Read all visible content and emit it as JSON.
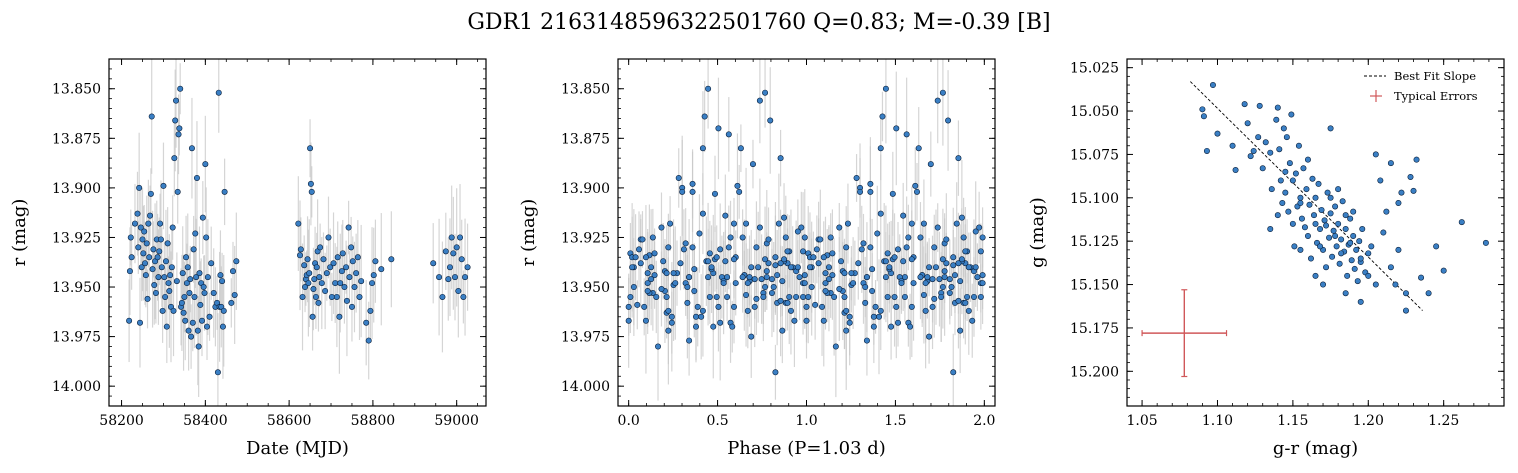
{
  "title": "GDR1 2163148596322501760  Q=0.83; M=-0.39 [B]",
  "colors": {
    "point": "#3a7fc4",
    "point_edge": "#0a1f3a",
    "errbar": "#c8c8c8",
    "typical_err": "#d0585a"
  },
  "chart_data": [
    {
      "type": "scatter",
      "xlabel": "Date (MJD)",
      "ylabel": "r (mag)",
      "xlim": [
        58170,
        59070
      ],
      "ylim": [
        14.01,
        13.835
      ],
      "y_inverted": true,
      "xticks": [
        "58200",
        "58400",
        "58600",
        "58800",
        "59000"
      ],
      "yticks": [
        "13.825",
        "13.850",
        "13.875",
        "13.900",
        "13.925",
        "13.950",
        "13.975",
        "14.000"
      ],
      "typical_err_r": 0.02,
      "points": [
        [
          58218,
          13.967
        ],
        [
          58220,
          13.942
        ],
        [
          58222,
          13.925
        ],
        [
          58224,
          13.935
        ],
        [
          58232,
          13.918
        ],
        [
          58238,
          13.913
        ],
        [
          58240,
          13.93
        ],
        [
          58242,
          13.9
        ],
        [
          58244,
          13.968
        ],
        [
          58246,
          13.92
        ],
        [
          58248,
          13.94
        ],
        [
          58250,
          13.926
        ],
        [
          58252,
          13.933
        ],
        [
          58254,
          13.922
        ],
        [
          58256,
          13.938
        ],
        [
          58258,
          13.944
        ],
        [
          58260,
          13.928
        ],
        [
          58262,
          13.956
        ],
        [
          58264,
          13.918
        ],
        [
          58266,
          13.935
        ],
        [
          58268,
          13.914
        ],
        [
          58270,
          13.903
        ],
        [
          58272,
          13.864
        ],
        [
          58274,
          13.941
        ],
        [
          58276,
          13.931
        ],
        [
          58278,
          13.949
        ],
        [
          58280,
          13.937
        ],
        [
          58282,
          13.953
        ],
        [
          58284,
          13.926
        ],
        [
          58286,
          13.935
        ],
        [
          58288,
          13.945
        ],
        [
          58290,
          13.932
        ],
        [
          58292,
          13.918
        ],
        [
          58294,
          13.926
        ],
        [
          58296,
          13.94
        ],
        [
          58298,
          13.962
        ],
        [
          58300,
          13.899
        ],
        [
          58302,
          13.945
        ],
        [
          58304,
          13.955
        ],
        [
          58306,
          13.937
        ],
        [
          58308,
          13.97
        ],
        [
          58310,
          13.928
        ],
        [
          58312,
          13.948
        ],
        [
          58314,
          13.952
        ],
        [
          58316,
          13.944
        ],
        [
          58318,
          13.96
        ],
        [
          58320,
          13.94
        ],
        [
          58322,
          13.92
        ],
        [
          58324,
          13.962
        ],
        [
          58326,
          13.885
        ],
        [
          58328,
          13.866
        ],
        [
          58330,
          13.856
        ],
        [
          58332,
          13.947
        ],
        [
          58334,
          13.902
        ],
        [
          58336,
          13.873
        ],
        [
          58338,
          13.87
        ],
        [
          58340,
          13.85
        ],
        [
          58342,
          13.96
        ],
        [
          58344,
          13.958
        ],
        [
          58346,
          13.943
        ],
        [
          58348,
          13.963
        ],
        [
          58350,
          13.955
        ],
        [
          58352,
          13.967
        ],
        [
          58354,
          13.935
        ],
        [
          58356,
          13.948
        ],
        [
          58358,
          13.94
        ],
        [
          58360,
          13.972
        ],
        [
          58362,
          13.953
        ],
        [
          58364,
          13.946
        ],
        [
          58366,
          13.975
        ],
        [
          58368,
          13.88
        ],
        [
          58370,
          13.968
        ],
        [
          58372,
          13.931
        ],
        [
          58374,
          13.955
        ],
        [
          58376,
          13.923
        ],
        [
          58378,
          13.945
        ],
        [
          58380,
          13.895
        ],
        [
          58382,
          13.972
        ],
        [
          58384,
          13.98
        ],
        [
          58386,
          13.943
        ],
        [
          58388,
          13.959
        ],
        [
          58390,
          13.948
        ],
        [
          58392,
          13.967
        ],
        [
          58394,
          13.915
        ],
        [
          58396,
          13.95
        ],
        [
          58398,
          13.953
        ],
        [
          58400,
          13.888
        ],
        [
          58402,
          13.925
        ],
        [
          58404,
          13.97
        ],
        [
          58406,
          13.945
        ],
        [
          58410,
          13.965
        ],
        [
          58414,
          13.938
        ],
        [
          58420,
          13.953
        ],
        [
          58424,
          13.96
        ],
        [
          58428,
          13.958
        ],
        [
          58430,
          13.993
        ],
        [
          58432,
          13.852
        ],
        [
          58434,
          13.96
        ],
        [
          58436,
          13.944
        ],
        [
          58438,
          13.96
        ],
        [
          58440,
          13.947
        ],
        [
          58442,
          13.97
        ],
        [
          58444,
          13.962
        ],
        [
          58446,
          13.902
        ],
        [
          58462,
          13.958
        ],
        [
          58466,
          13.942
        ],
        [
          58470,
          13.954
        ],
        [
          58474,
          13.937
        ],
        [
          58622,
          13.918
        ],
        [
          58626,
          13.934
        ],
        [
          58628,
          13.931
        ],
        [
          58632,
          13.955
        ],
        [
          58636,
          13.939
        ],
        [
          58638,
          13.95
        ],
        [
          58640,
          13.946
        ],
        [
          58642,
          13.944
        ],
        [
          58644,
          13.936
        ],
        [
          58646,
          13.948
        ],
        [
          58648,
          13.943
        ],
        [
          58650,
          13.88
        ],
        [
          58652,
          13.898
        ],
        [
          58654,
          13.902
        ],
        [
          58656,
          13.965
        ],
        [
          58658,
          13.951
        ],
        [
          58660,
          13.946
        ],
        [
          58662,
          13.938
        ],
        [
          58664,
          13.955
        ],
        [
          58666,
          13.94
        ],
        [
          58668,
          13.932
        ],
        [
          58670,
          13.958
        ],
        [
          58672,
          13.945
        ],
        [
          58674,
          13.93
        ],
        [
          58678,
          13.948
        ],
        [
          58682,
          13.936
        ],
        [
          58686,
          13.952
        ],
        [
          58690,
          13.943
        ],
        [
          58694,
          13.925
        ],
        [
          58698,
          13.94
        ],
        [
          58702,
          13.955
        ],
        [
          58706,
          13.938
        ],
        [
          58710,
          13.948
        ],
        [
          58714,
          13.955
        ],
        [
          58716,
          13.935
        ],
        [
          58720,
          13.965
        ],
        [
          58722,
          13.948
        ],
        [
          58726,
          13.942
        ],
        [
          58728,
          13.933
        ],
        [
          58732,
          13.95
        ],
        [
          58736,
          13.94
        ],
        [
          58738,
          13.957
        ],
        [
          58742,
          13.92
        ],
        [
          58744,
          13.945
        ],
        [
          58748,
          13.93
        ],
        [
          58750,
          13.96
        ],
        [
          58752,
          13.937
        ],
        [
          58756,
          13.95
        ],
        [
          58760,
          13.943
        ],
        [
          58764,
          13.935
        ],
        [
          58768,
          13.955
        ],
        [
          58772,
          13.947
        ],
        [
          58784,
          13.968
        ],
        [
          58790,
          13.977
        ],
        [
          58794,
          13.962
        ],
        [
          58798,
          13.948
        ],
        [
          58802,
          13.944
        ],
        [
          58806,
          13.937
        ],
        [
          58820,
          13.941
        ],
        [
          58844,
          13.936
        ],
        [
          58944,
          13.938
        ],
        [
          58958,
          13.945
        ],
        [
          58966,
          13.955
        ],
        [
          58974,
          13.932
        ],
        [
          58980,
          13.946
        ],
        [
          58984,
          13.94
        ],
        [
          58988,
          13.925
        ],
        [
          58992,
          13.933
        ],
        [
          58996,
          13.945
        ],
        [
          59000,
          13.93
        ],
        [
          59004,
          13.952
        ],
        [
          59008,
          13.925
        ],
        [
          59012,
          13.936
        ],
        [
          59016,
          13.955
        ],
        [
          59020,
          13.945
        ],
        [
          59026,
          13.94
        ]
      ]
    },
    {
      "type": "scatter",
      "xlabel": "Phase (P=1.03 d)",
      "ylabel": "r (mag)",
      "xlim": [
        -0.06,
        2.06
      ],
      "ylim": [
        14.01,
        13.835
      ],
      "y_inverted": true,
      "xticks": [
        "0.0",
        "0.5",
        "1.0",
        "1.5",
        "2.0"
      ],
      "yticks": [
        "13.825",
        "13.850",
        "13.875",
        "13.900",
        "13.925",
        "13.950",
        "13.975",
        "14.000"
      ],
      "points": []
    },
    {
      "type": "scatter",
      "xlabel": "g-r (mag)",
      "ylabel": "g (mag)",
      "xlim": [
        1.04,
        1.29
      ],
      "ylim": [
        15.22,
        15.02
      ],
      "y_inverted": true,
      "xticks": [
        "1.05",
        "1.10",
        "1.15",
        "1.20",
        "1.25"
      ],
      "yticks": [
        "15.025",
        "15.050",
        "15.075",
        "15.100",
        "15.125",
        "15.150",
        "15.175",
        "15.200"
      ],
      "legend": [
        "Best Fit Slope",
        "Typical Errors"
      ],
      "legend_position": "top-right",
      "fit_line": {
        "x": [
          1.082,
          1.236
        ],
        "y": [
          15.033,
          15.165
        ]
      },
      "typical_error": {
        "x": 1.078,
        "y": 15.178,
        "xerr": 0.028,
        "yerr": 0.025
      },
      "points": [
        [
          1.09,
          15.049
        ],
        [
          1.091,
          15.053
        ],
        [
          1.097,
          15.035
        ],
        [
          1.093,
          15.073
        ],
        [
          1.1,
          15.063
        ],
        [
          1.11,
          15.07
        ],
        [
          1.112,
          15.084
        ],
        [
          1.118,
          15.046
        ],
        [
          1.12,
          15.057
        ],
        [
          1.122,
          15.076
        ],
        [
          1.124,
          15.073
        ],
        [
          1.127,
          15.065
        ],
        [
          1.128,
          15.047
        ],
        [
          1.13,
          15.083
        ],
        [
          1.132,
          15.068
        ],
        [
          1.135,
          15.074
        ],
        [
          1.136,
          15.095
        ],
        [
          1.139,
          15.055
        ],
        [
          1.14,
          15.048
        ],
        [
          1.141,
          15.072
        ],
        [
          1.142,
          15.09
        ],
        [
          1.143,
          15.103
        ],
        [
          1.144,
          15.06
        ],
        [
          1.145,
          15.097
        ],
        [
          1.146,
          15.065
        ],
        [
          1.147,
          15.108
        ],
        [
          1.148,
          15.08
        ],
        [
          1.149,
          15.052
        ],
        [
          1.15,
          15.115
        ],
        [
          1.151,
          15.128
        ],
        [
          1.152,
          15.086
        ],
        [
          1.153,
          15.105
        ],
        [
          1.154,
          15.07
        ],
        [
          1.155,
          15.1
        ],
        [
          1.156,
          15.112
        ],
        [
          1.157,
          15.083
        ],
        [
          1.158,
          15.117
        ],
        [
          1.159,
          15.095
        ],
        [
          1.16,
          15.122
        ],
        [
          1.161,
          15.104
        ],
        [
          1.162,
          15.135
        ],
        [
          1.163,
          15.089
        ],
        [
          1.164,
          15.11
        ],
        [
          1.165,
          15.1
        ],
        [
          1.166,
          15.126
        ],
        [
          1.167,
          15.092
        ],
        [
          1.168,
          15.118
        ],
        [
          1.169,
          15.107
        ],
        [
          1.17,
          15.13
        ],
        [
          1.171,
          15.113
        ],
        [
          1.172,
          15.14
        ],
        [
          1.173,
          15.097
        ],
        [
          1.174,
          15.123
        ],
        [
          1.175,
          15.109
        ],
        [
          1.176,
          15.134
        ],
        [
          1.177,
          15.119
        ],
        [
          1.178,
          15.105
        ],
        [
          1.179,
          15.128
        ],
        [
          1.18,
          15.115
        ],
        [
          1.181,
          15.138
        ],
        [
          1.182,
          15.124
        ],
        [
          1.183,
          15.102
        ],
        [
          1.184,
          15.131
        ],
        [
          1.185,
          15.118
        ],
        [
          1.186,
          15.145
        ],
        [
          1.187,
          15.127
        ],
        [
          1.188,
          15.112
        ],
        [
          1.189,
          15.136
        ],
        [
          1.19,
          15.122
        ],
        [
          1.191,
          15.141
        ],
        [
          1.192,
          15.13
        ],
        [
          1.193,
          15.148
        ],
        [
          1.194,
          15.125
        ],
        [
          1.195,
          15.137
        ],
        [
          1.196,
          15.118
        ],
        [
          1.198,
          15.143
        ],
        [
          1.2,
          15.132
        ],
        [
          1.202,
          15.128
        ],
        [
          1.205,
          15.075
        ],
        [
          1.208,
          15.09
        ],
        [
          1.212,
          15.108
        ],
        [
          1.215,
          15.08
        ],
        [
          1.218,
          15.15
        ],
        [
          1.22,
          15.103
        ],
        [
          1.222,
          15.097
        ],
        [
          1.225,
          15.155
        ],
        [
          1.228,
          15.088
        ],
        [
          1.232,
          15.078
        ],
        [
          1.235,
          15.146
        ],
        [
          1.24,
          15.155
        ],
        [
          1.245,
          15.128
        ],
        [
          1.25,
          15.142
        ],
        [
          1.262,
          15.114
        ],
        [
          1.278,
          15.126
        ],
        [
          1.135,
          15.118
        ],
        [
          1.15,
          15.09
        ],
        [
          1.165,
          15.145
        ],
        [
          1.175,
          15.06
        ],
        [
          1.185,
          15.155
        ],
        [
          1.195,
          15.16
        ],
        [
          1.205,
          15.15
        ],
        [
          1.215,
          15.14
        ],
        [
          1.225,
          15.165
        ],
        [
          1.23,
          15.096
        ],
        [
          1.155,
          15.13
        ],
        [
          1.16,
          15.078
        ],
        [
          1.17,
          15.15
        ],
        [
          1.18,
          15.095
        ],
        [
          1.19,
          15.108
        ],
        [
          1.2,
          15.145
        ],
        [
          1.21,
          15.12
        ],
        [
          1.22,
          15.13
        ],
        [
          1.14,
          15.11
        ],
        [
          1.145,
          15.085
        ],
        [
          1.155,
          15.103
        ],
        [
          1.165,
          15.115
        ],
        [
          1.175,
          15.1
        ],
        [
          1.185,
          15.11
        ],
        [
          1.195,
          15.135
        ],
        [
          1.168,
          15.128
        ],
        [
          1.172,
          15.116
        ],
        [
          1.178,
          15.122
        ],
        [
          1.182,
          15.132
        ],
        [
          1.188,
          15.126
        ]
      ]
    }
  ]
}
